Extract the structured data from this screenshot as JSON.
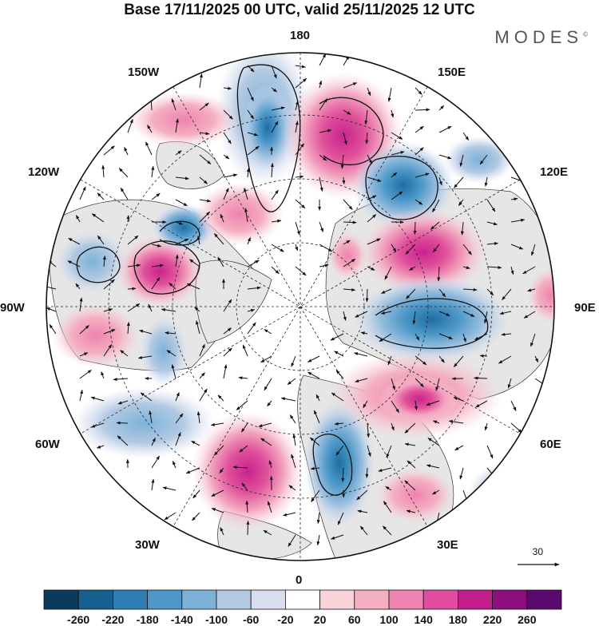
{
  "header": {
    "title": "Base 17/11/2025 00 UTC, valid 25/11/2025 12 UTC",
    "logo": "MODES",
    "logo_mark": "©"
  },
  "map": {
    "longitude_labels": {
      "lon_180": "180",
      "lon_150e": "150E",
      "lon_120e": "120E",
      "lon_90e": "90E",
      "lon_60e": "60E",
      "lon_30e": "30E",
      "lon_0": "0",
      "lon_30w": "30W",
      "lon_60w": "60W",
      "lon_90w": "90W",
      "lon_120w": "120W",
      "lon_150w": "150W"
    },
    "reference_vector": "30",
    "colors": {
      "positive_fill": "#f0a8c0",
      "strong_positive": "#e0509a",
      "negative_fill": "#9ab8d8",
      "strong_negative": "#3e86b8",
      "land": "#e6e6e6"
    }
  },
  "colorbar": {
    "labels": [
      "-260",
      "-220",
      "-180",
      "-140",
      "-100",
      "-60",
      "-20",
      "20",
      "60",
      "100",
      "140",
      "180",
      "220",
      "260"
    ],
    "colors": [
      "#0b3a5c",
      "#165f8e",
      "#2e7db4",
      "#4d98c8",
      "#7cb2d8",
      "#b2c9e3",
      "#d8def0",
      "#ffffff",
      "#f8d3d7",
      "#f4afc1",
      "#ee82b0",
      "#e04ca0",
      "#c21f8c",
      "#8c0f7e",
      "#5a0a6e"
    ]
  }
}
